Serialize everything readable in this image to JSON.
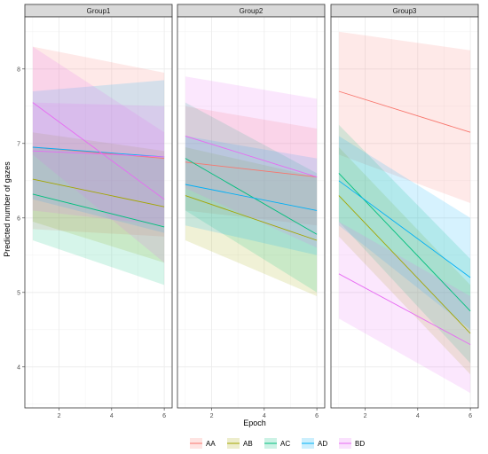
{
  "chart_data": {
    "type": "line",
    "xlabel": "Epoch",
    "ylabel": "Predicted number of gazes",
    "xlim": [
      0.7,
      6.3
    ],
    "ylim": [
      3.45,
      8.7
    ],
    "x_ticks": [
      2,
      4,
      6
    ],
    "y_ticks": [
      4,
      5,
      6,
      7,
      8
    ],
    "grid": true,
    "legend_position": "bottom",
    "series_colors": {
      "AA": "#F8766D",
      "AB": "#A3A500",
      "AC": "#00BF7D",
      "AD": "#00B0F6",
      "BD": "#E76BF3"
    },
    "legend": [
      "AA",
      "AB",
      "AC",
      "AD",
      "BD"
    ],
    "panels": [
      {
        "title": "Group1",
        "series": [
          {
            "name": "AA",
            "x": [
              1,
              6
            ],
            "y": [
              6.95,
              6.8
            ],
            "lower": [
              5.85,
              5.75
            ],
            "upper": [
              8.3,
              7.95
            ]
          },
          {
            "name": "AB",
            "x": [
              1,
              6
            ],
            "y": [
              6.52,
              6.15
            ],
            "lower": [
              5.95,
              5.4
            ],
            "upper": [
              7.15,
              6.9
            ]
          },
          {
            "name": "AC",
            "x": [
              1,
              6
            ],
            "y": [
              6.32,
              5.88
            ],
            "lower": [
              5.7,
              5.1
            ],
            "upper": [
              6.95,
              6.8
            ]
          },
          {
            "name": "AD",
            "x": [
              1,
              6
            ],
            "y": [
              6.95,
              6.82
            ],
            "lower": [
              6.25,
              5.8
            ],
            "upper": [
              7.7,
              7.85
            ]
          },
          {
            "name": "BD",
            "x": [
              1,
              6
            ],
            "y": [
              7.55,
              6.25
            ],
            "lower": [
              6.85,
              5.4
            ],
            "upper": [
              8.3,
              7.15
            ]
          },
          {
            "name": "BD",
            "x": [
              1,
              6
            ],
            "y": [
              6.9,
              6.82
            ],
            "lower": [
              6.1,
              5.9
            ],
            "upper": [
              7.55,
              7.5
            ]
          }
        ]
      },
      {
        "title": "Group2",
        "series": [
          {
            "name": "AA",
            "x": [
              1,
              6
            ],
            "y": [
              6.75,
              6.55
            ],
            "lower": [
              6.1,
              5.9
            ],
            "upper": [
              7.5,
              7.2
            ]
          },
          {
            "name": "AB",
            "x": [
              1,
              6
            ],
            "y": [
              6.3,
              5.7
            ],
            "lower": [
              5.7,
              4.95
            ],
            "upper": [
              6.95,
              6.55
            ]
          },
          {
            "name": "AC",
            "x": [
              1,
              6
            ],
            "y": [
              6.8,
              5.78
            ],
            "lower": [
              6.1,
              5.0
            ],
            "upper": [
              7.55,
              6.6
            ]
          },
          {
            "name": "AD",
            "x": [
              1,
              6
            ],
            "y": [
              6.45,
              6.1
            ],
            "lower": [
              5.9,
              5.5
            ],
            "upper": [
              7.1,
              6.8
            ]
          },
          {
            "name": "BD",
            "x": [
              1,
              6
            ],
            "y": [
              7.1,
              6.55
            ],
            "lower": [
              6.4,
              5.6
            ],
            "upper": [
              7.9,
              7.6
            ]
          }
        ]
      },
      {
        "title": "Group3",
        "series": [
          {
            "name": "AA",
            "x": [
              1,
              6
            ],
            "y": [
              7.7,
              7.15
            ],
            "lower": [
              6.85,
              6.2
            ],
            "upper": [
              8.5,
              8.25
            ]
          },
          {
            "name": "AB",
            "x": [
              1,
              6
            ],
            "y": [
              6.3,
              4.45
            ],
            "lower": [
              5.75,
              3.9
            ],
            "upper": [
              6.95,
              5.1
            ]
          },
          {
            "name": "AC",
            "x": [
              1,
              6
            ],
            "y": [
              6.6,
              4.75
            ],
            "lower": [
              5.95,
              4.05
            ],
            "upper": [
              7.25,
              5.45
            ]
          },
          {
            "name": "AD",
            "x": [
              1,
              6
            ],
            "y": [
              6.5,
              5.2
            ],
            "lower": [
              5.9,
              4.5
            ],
            "upper": [
              7.1,
              6.0
            ]
          },
          {
            "name": "BD",
            "x": [
              1,
              6
            ],
            "y": [
              5.25,
              4.3
            ],
            "lower": [
              4.65,
              3.65
            ],
            "upper": [
              5.95,
              4.95
            ]
          }
        ]
      }
    ]
  }
}
